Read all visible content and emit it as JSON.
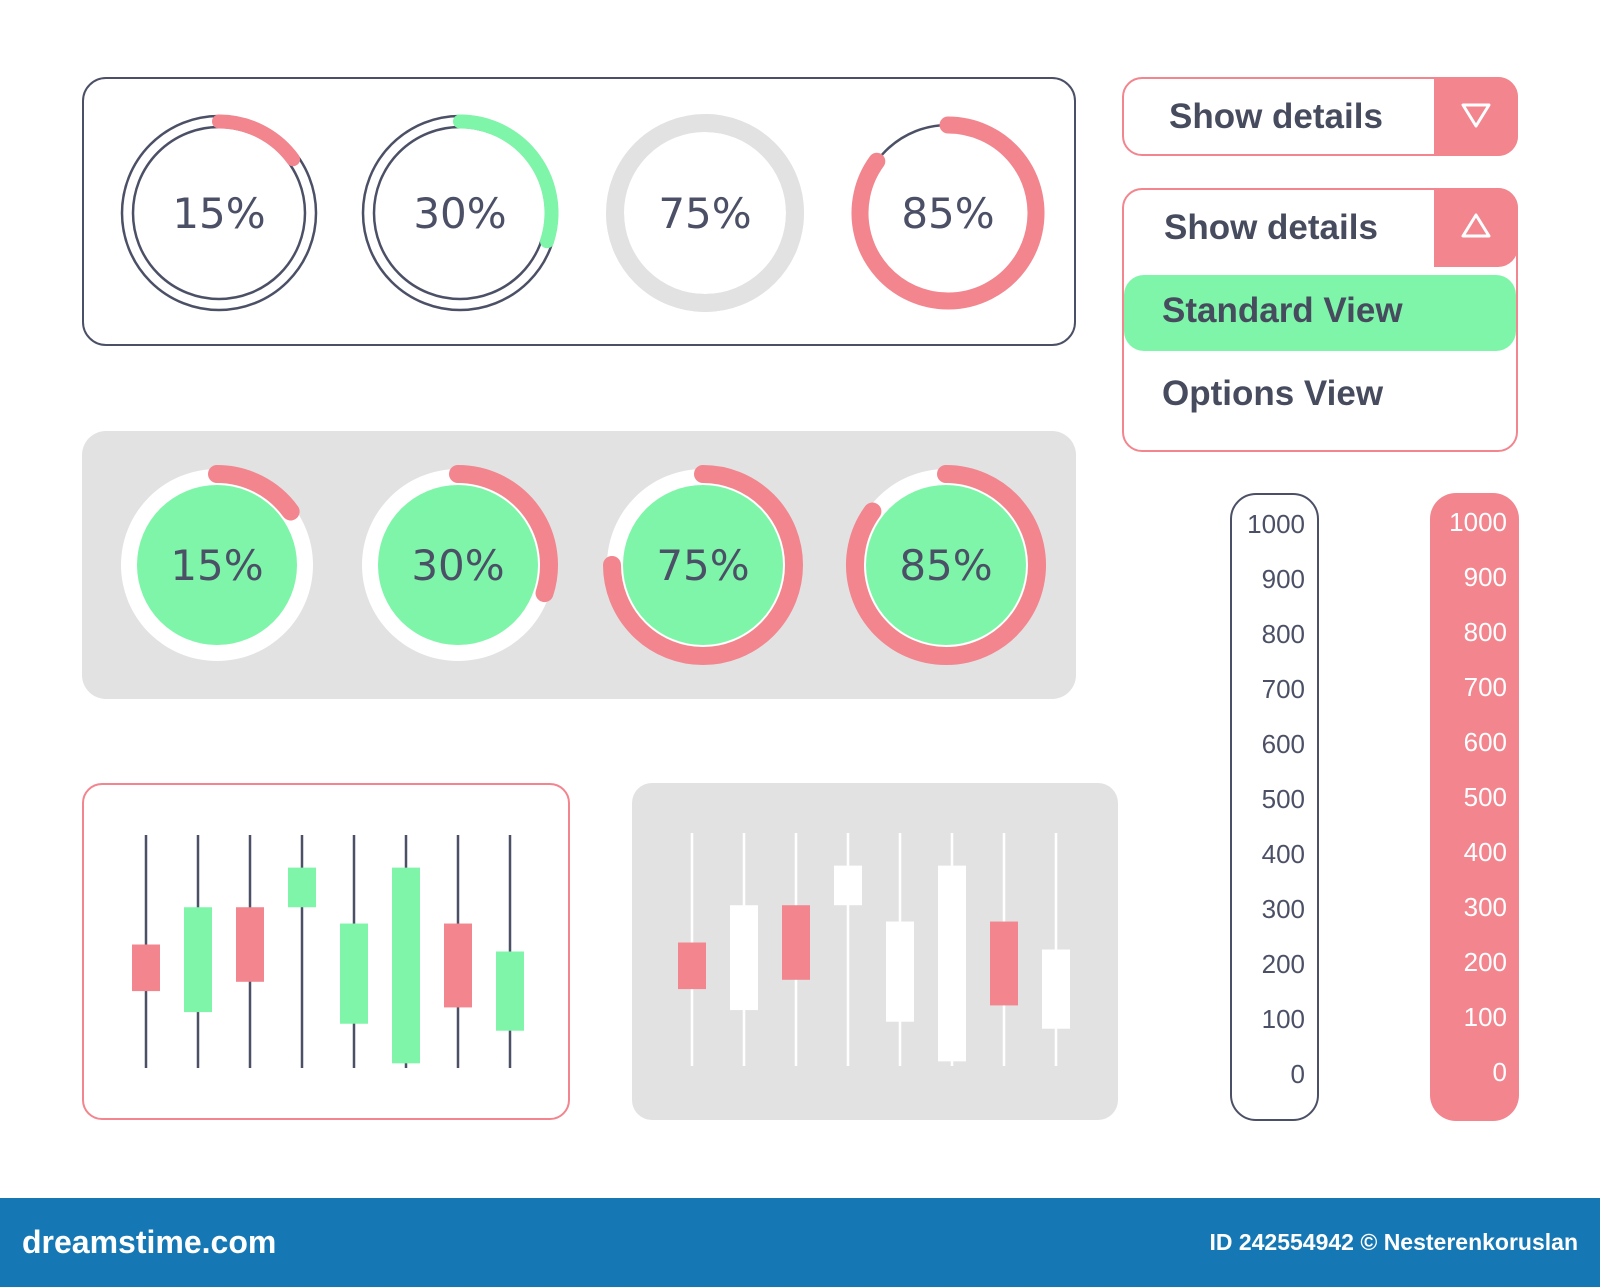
{
  "colors": {
    "pink": "#f2858e",
    "green": "#7ef5a9",
    "navy": "#4b5066",
    "grey": "#e2e2e2",
    "white": "#ffffff",
    "footer_blue": "#1578b4"
  },
  "rings_outline": [
    {
      "percent": 15,
      "label": "15%",
      "arc_color": "pink"
    },
    {
      "percent": 30,
      "label": "30%",
      "arc_color": "green"
    },
    {
      "percent": 75,
      "label": "75%",
      "arc_color": "grey"
    },
    {
      "percent": 85,
      "label": "85%",
      "arc_color": "pink"
    }
  ],
  "rings_filled": [
    {
      "percent": 15,
      "label": "15%"
    },
    {
      "percent": 30,
      "label": "30%"
    },
    {
      "percent": 75,
      "label": "75%"
    },
    {
      "percent": 85,
      "label": "85%"
    }
  ],
  "dropdown_closed": {
    "label": "Show details",
    "icon": "chevron-down-icon"
  },
  "dropdown_open": {
    "label": "Show details",
    "icon": "chevron-up-icon",
    "options": [
      {
        "label": "Standard View",
        "selected": true
      },
      {
        "label": "Options View",
        "selected": false
      }
    ]
  },
  "scale_ticks": [
    "1000",
    "900",
    "800",
    "700",
    "600",
    "500",
    "400",
    "300",
    "200",
    "100",
    "0"
  ],
  "candles": [
    {
      "open": 0.53,
      "close": 0.33,
      "color": "pink"
    },
    {
      "open": 0.24,
      "close": 0.69,
      "color": "green"
    },
    {
      "open": 0.69,
      "close": 0.37,
      "color": "pink"
    },
    {
      "open": 0.69,
      "close": 0.86,
      "color": "green"
    },
    {
      "open": 0.19,
      "close": 0.62,
      "color": "green"
    },
    {
      "open": 0.02,
      "close": 0.86,
      "color": "green"
    },
    {
      "open": 0.62,
      "close": 0.26,
      "color": "pink"
    },
    {
      "open": 0.16,
      "close": 0.5,
      "color": "green"
    }
  ],
  "footer": {
    "logo": "dreamstime.com",
    "id_text": "ID 242554942 © Nesterenkoruslan"
  }
}
